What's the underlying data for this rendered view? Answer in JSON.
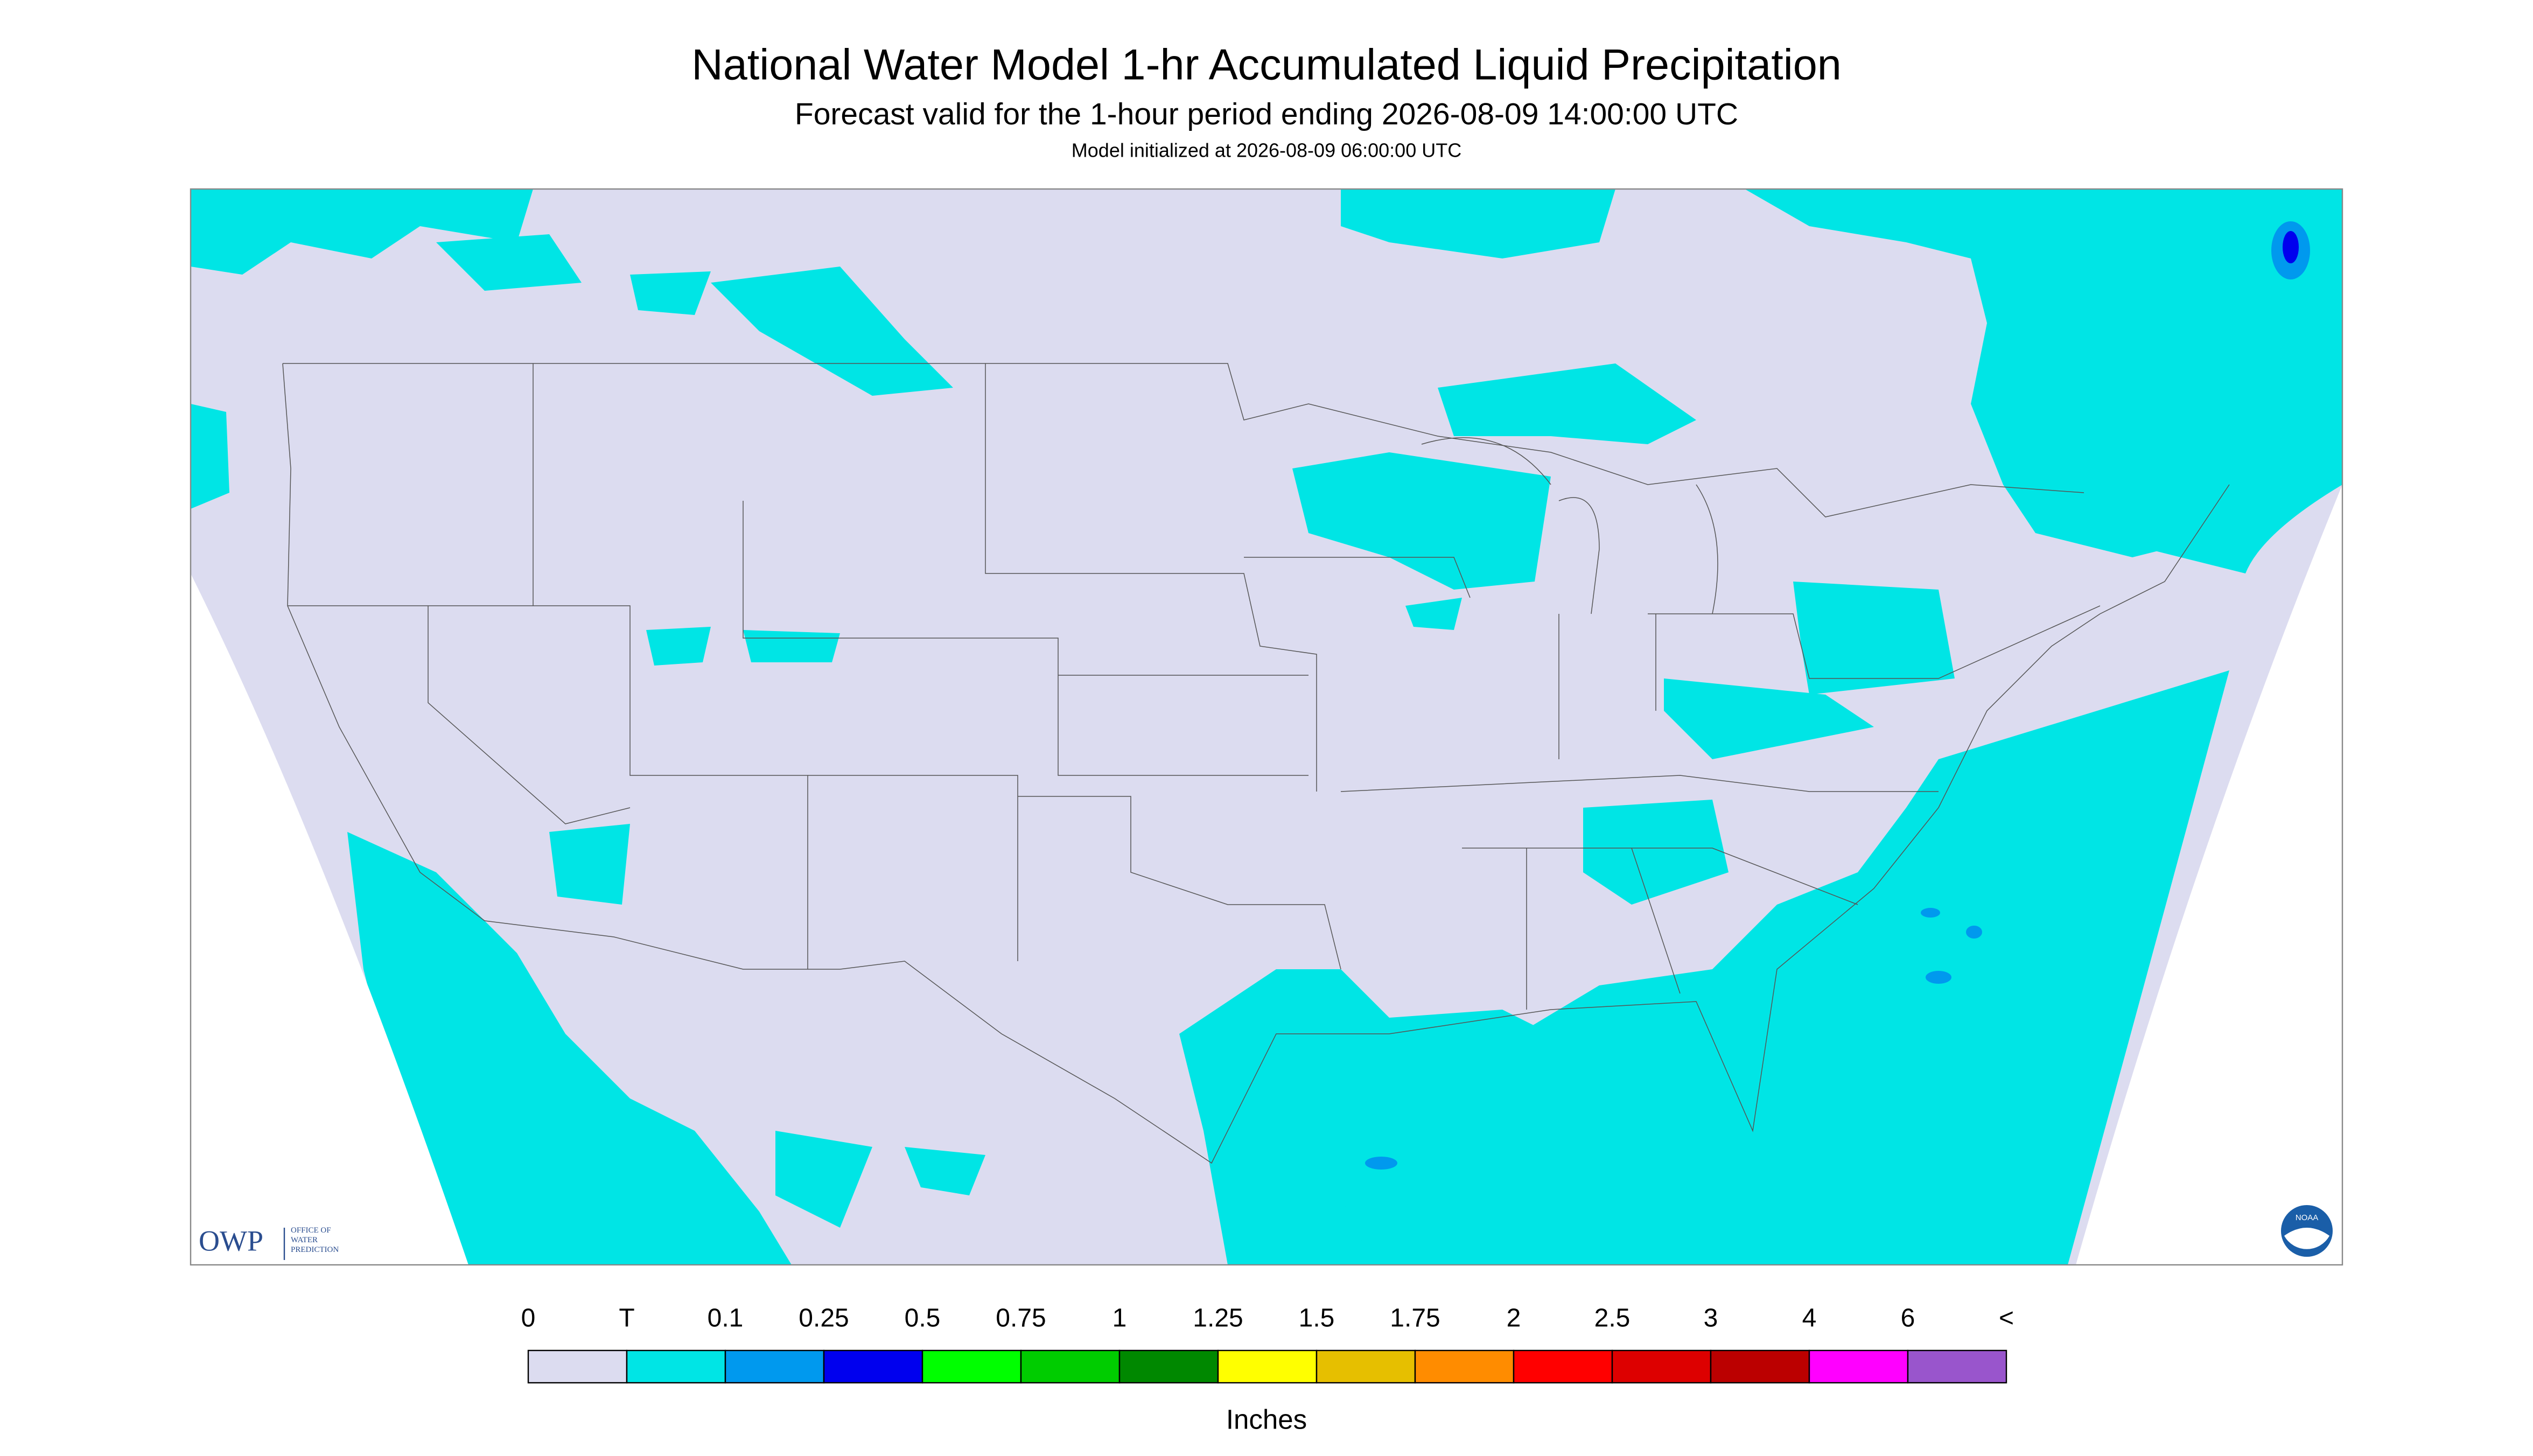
{
  "header": {
    "title": "National Water Model 1-hr Accumulated Liquid Precipitation",
    "subtitle": "Forecast valid for the 1-hour period ending 2026-08-09 14:00:00 UTC",
    "init": "Model initialized at 2026-08-09 06:00:00 UTC"
  },
  "legend": {
    "labels": [
      "0",
      "T",
      "0.1",
      "0.25",
      "0.5",
      "0.75",
      "1",
      "1.25",
      "1.5",
      "1.75",
      "2",
      "2.5",
      "3",
      "4",
      "6",
      "<"
    ],
    "colors": [
      "#dcdcf0",
      "#00e5e5",
      "#0099ee",
      "#0000ee",
      "#00ff00",
      "#00cc00",
      "#008800",
      "#ffff00",
      "#e6bf00",
      "#ff8c00",
      "#ff0000",
      "#dd0000",
      "#bb0000",
      "#ff00ff",
      "#9955cc"
    ],
    "unit": "Inches"
  },
  "logos": {
    "owp": "OWP",
    "owp_sub": [
      "OFFICE OF",
      "WATER",
      "PREDICTION"
    ],
    "noaa": "NOAA"
  }
}
